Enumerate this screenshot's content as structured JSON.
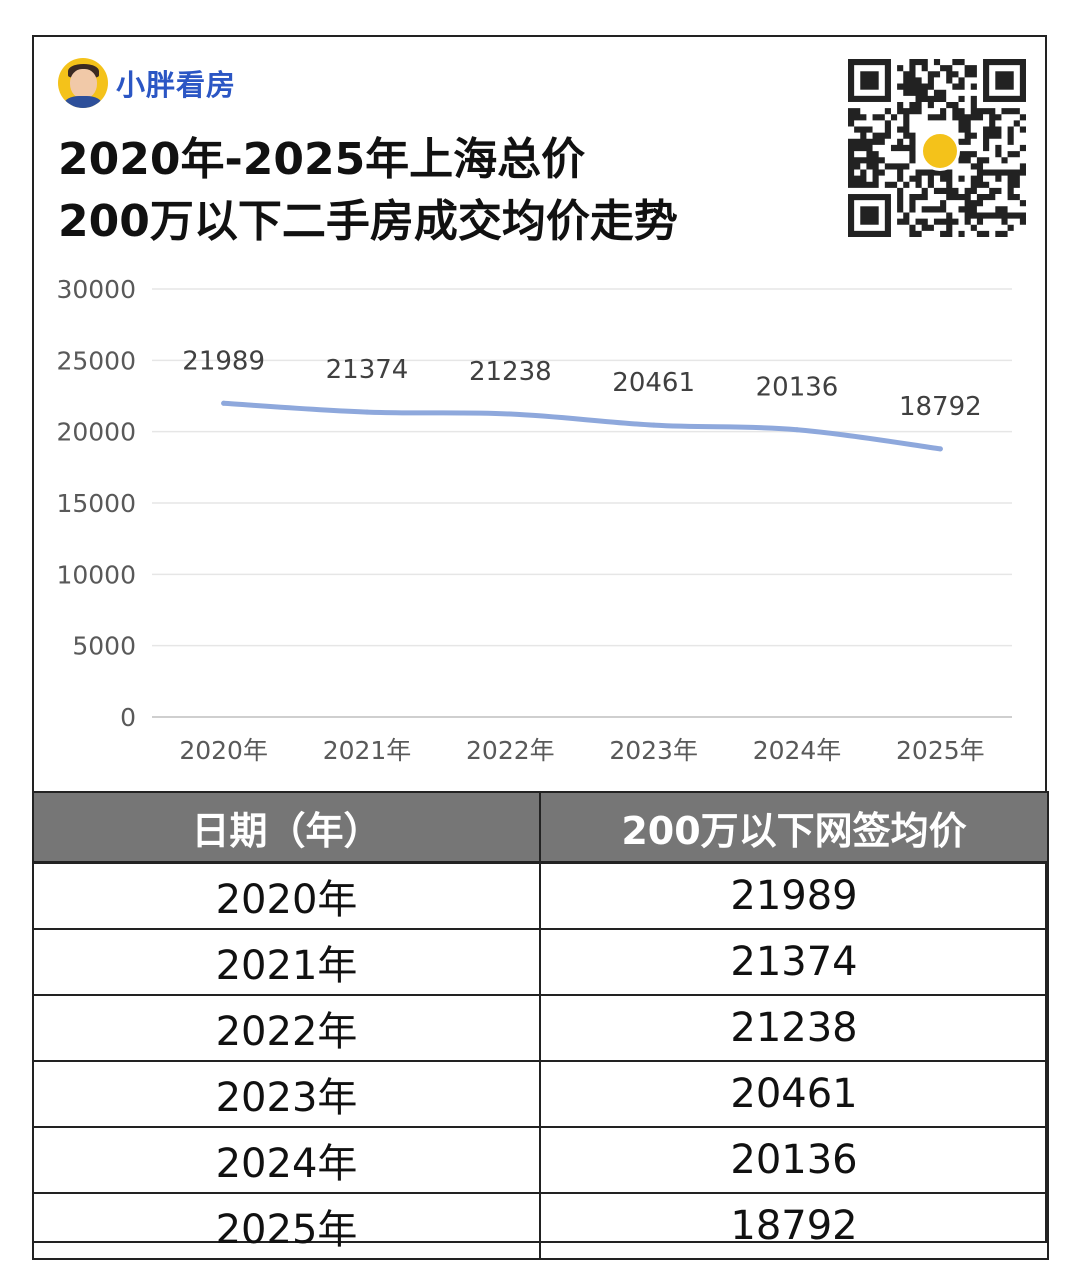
{
  "brand": {
    "name": "小胖看房",
    "avatar_icon": "cartoon-avatar-icon",
    "accent": "#2b56c4"
  },
  "header": {
    "title_line1": "2020年-2025年上海总价",
    "title_line2": "200万以下二手房成交均价走势"
  },
  "qr": {
    "icon": "qr-code-icon"
  },
  "chart_data": {
    "type": "line",
    "categories": [
      "2020年",
      "2021年",
      "2022年",
      "2023年",
      "2024年",
      "2025年"
    ],
    "series": [
      {
        "values": [
          21989,
          21374,
          21238,
          20461,
          20136,
          18792
        ],
        "color": "#8ea8dc"
      }
    ],
    "data_labels": [
      "21989",
      "21374",
      "21238",
      "20461",
      "20136",
      "18792"
    ],
    "ylim": [
      0,
      30000
    ],
    "yticks": [
      "0",
      "5000",
      "10000",
      "15000",
      "20000",
      "25000",
      "30000"
    ],
    "grid": true,
    "title": "",
    "xlabel": "",
    "ylabel": ""
  },
  "table": {
    "headers": [
      "日期（年）",
      "200万以下网签均价"
    ],
    "rows": [
      [
        "2020年",
        "21989"
      ],
      [
        "2021年",
        "21374"
      ],
      [
        "2022年",
        "21238"
      ],
      [
        "2023年",
        "20461"
      ],
      [
        "2024年",
        "20136"
      ],
      [
        "2025年",
        "18792"
      ]
    ],
    "header_bg": "#767676"
  }
}
